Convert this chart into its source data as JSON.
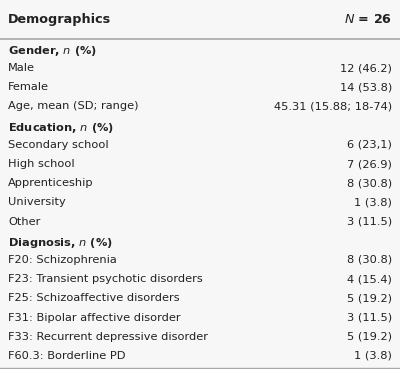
{
  "title_left": "Demographics",
  "title_right": "N = 26",
  "rows": [
    {
      "label": "Gender, n (%)",
      "value": "",
      "bold": true
    },
    {
      "label": "Male",
      "value": "12 (46.2)",
      "bold": false
    },
    {
      "label": "Female",
      "value": "14 (53.8)",
      "bold": false
    },
    {
      "label": "Age, mean (SD; range)",
      "value": "45.31 (15.88; 18-74)",
      "bold": false
    },
    {
      "label": "Education, n (%)",
      "value": "",
      "bold": true
    },
    {
      "label": "Secondary school",
      "value": "6 (23,1)",
      "bold": false
    },
    {
      "label": "High school",
      "value": "7 (26.9)",
      "bold": false
    },
    {
      "label": "Apprenticeship",
      "value": "8 (30.8)",
      "bold": false
    },
    {
      "label": "University",
      "value": "1 (3.8)",
      "bold": false
    },
    {
      "label": "Other",
      "value": "3 (11.5)",
      "bold": false
    },
    {
      "label": "Diagnosis, n (%)",
      "value": "",
      "bold": true
    },
    {
      "label": "F20: Schizophrenia",
      "value": "8 (30.8)",
      "bold": false
    },
    {
      "label": "F23: Transient psychotic disorders",
      "value": "4 (15.4)",
      "bold": false
    },
    {
      "label": "F25: Schizoaffective disorders",
      "value": "5 (19.2)",
      "bold": false
    },
    {
      "label": "F31: Bipolar affective disorder",
      "value": "3 (11.5)",
      "bold": false
    },
    {
      "label": "F33: Recurrent depressive disorder",
      "value": "5 (19.2)",
      "bold": false
    },
    {
      "label": "F60.3: Borderline PD",
      "value": "1 (3.8)",
      "bold": false
    }
  ],
  "bg_color": "#f7f7f7",
  "header_line_color": "#aaaaaa",
  "text_color": "#222222",
  "font_size": 8.2,
  "header_font_size": 9.2
}
